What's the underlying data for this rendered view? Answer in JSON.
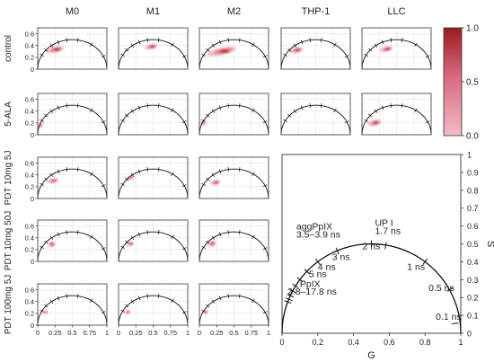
{
  "chart_data": {
    "type": "heatmap",
    "columns": [
      "M0",
      "M1",
      "M2",
      "THP-1",
      "LLC"
    ],
    "rows": [
      "control",
      "5-ALA",
      "PDT 10mg 5J",
      "PDT 10mg 50J",
      "PDT 100mg 5J"
    ],
    "small_axes": {
      "xlim": [
        0,
        1
      ],
      "ylim": [
        0,
        0.7
      ],
      "yticks": [
        "0",
        "0.2",
        "0.4",
        "0.6"
      ],
      "xticks": [
        "0",
        "0.25",
        "0.5",
        "0.75",
        "1"
      ]
    },
    "colorbar": {
      "min": 0,
      "max": 1,
      "ticks": [
        "1.0",
        "0.5",
        "0.0"
      ],
      "color_low": "#f4b9c6",
      "color_high": "#9b1b1f"
    },
    "distributions": [
      {
        "row": "control",
        "column": "M0",
        "g": 0.25,
        "s": 0.33,
        "spread_g": 0.13,
        "spread_s": 0.05,
        "peak": 1.0
      },
      {
        "row": "control",
        "column": "M1",
        "g": 0.47,
        "s": 0.38,
        "spread_g": 0.1,
        "spread_s": 0.04,
        "peak": 1.0
      },
      {
        "row": "control",
        "column": "M2",
        "g": 0.32,
        "s": 0.3,
        "spread_g": 0.22,
        "spread_s": 0.06,
        "peak": 1.0
      },
      {
        "row": "control",
        "column": "THP-1",
        "g": 0.22,
        "s": 0.32,
        "spread_g": 0.1,
        "spread_s": 0.045,
        "peak": 0.9
      },
      {
        "row": "control",
        "column": "LLC",
        "g": 0.35,
        "s": 0.34,
        "spread_g": 0.1,
        "spread_s": 0.04,
        "peak": 1.0
      },
      {
        "row": "5-ALA",
        "column": "M0",
        "g": 0.04,
        "s": 0.16,
        "spread_g": 0.03,
        "spread_s": 0.04,
        "peak": 0.7
      },
      {
        "row": "5-ALA",
        "column": "M2",
        "g": 0.05,
        "s": 0.2,
        "spread_g": 0.04,
        "spread_s": 0.04,
        "peak": 0.6
      },
      {
        "row": "5-ALA",
        "column": "LLC",
        "g": 0.18,
        "s": 0.2,
        "spread_g": 0.1,
        "spread_s": 0.05,
        "peak": 0.9
      },
      {
        "row": "PDT 10mg 5J",
        "column": "M0",
        "g": 0.22,
        "s": 0.3,
        "spread_g": 0.08,
        "spread_s": 0.04,
        "peak": 0.8
      },
      {
        "row": "PDT 10mg 5J",
        "column": "M1",
        "g": 0.17,
        "s": 0.35,
        "spread_g": 0.06,
        "spread_s": 0.03,
        "peak": 0.6
      },
      {
        "row": "PDT 10mg 5J",
        "column": "M2",
        "g": 0.23,
        "s": 0.27,
        "spread_g": 0.07,
        "spread_s": 0.04,
        "peak": 0.9
      },
      {
        "row": "PDT 10mg 50J",
        "column": "M0",
        "g": 0.2,
        "s": 0.29,
        "spread_g": 0.05,
        "spread_s": 0.05,
        "peak": 0.9
      },
      {
        "row": "PDT 10mg 50J",
        "column": "M1",
        "g": 0.17,
        "s": 0.3,
        "spread_g": 0.05,
        "spread_s": 0.04,
        "peak": 0.8
      },
      {
        "row": "PDT 10mg 50J",
        "column": "M2",
        "g": 0.18,
        "s": 0.3,
        "spread_g": 0.06,
        "spread_s": 0.05,
        "peak": 0.8
      },
      {
        "row": "PDT 100mg 5J",
        "column": "M0",
        "g": 0.11,
        "s": 0.22,
        "spread_g": 0.035,
        "spread_s": 0.035,
        "peak": 0.7
      },
      {
        "row": "PDT 100mg 5J",
        "column": "M1",
        "g": 0.13,
        "s": 0.22,
        "spread_g": 0.04,
        "spread_s": 0.04,
        "peak": 0.7
      },
      {
        "row": "PDT 100mg 5J",
        "column": "M2",
        "g": 0.09,
        "s": 0.22,
        "spread_g": 0.03,
        "spread_s": 0.035,
        "peak": 0.6
      }
    ],
    "reference_plot": {
      "xlabel": "G",
      "ylabel": "S",
      "xlim": [
        0,
        1
      ],
      "ylim": [
        0,
        1
      ],
      "xticks": [
        "0",
        "0.2",
        "0.4",
        "0.6",
        "0.8",
        "1"
      ],
      "yticks": [
        "0",
        "0.1",
        "0.2",
        "0.3",
        "0.4",
        "0.5",
        "0.6",
        "0.7",
        "0.8",
        "0.9",
        "1"
      ],
      "lifetime_markers": [
        {
          "label": "0.1 ns",
          "g": 0.968,
          "s": 0.055
        },
        {
          "label": "0.5 ns",
          "g": 0.94,
          "s": 0.245
        },
        {
          "label": "1 ns",
          "g": 0.8,
          "s": 0.4
        },
        {
          "label": "1.7 ns",
          "g": 0.58,
          "s": 0.49
        },
        {
          "label": "2 ns",
          "g": 0.5,
          "s": 0.5
        },
        {
          "label": "3 ns",
          "g": 0.31,
          "s": 0.46
        },
        {
          "label": "4 ns",
          "g": 0.2,
          "s": 0.4
        },
        {
          "label": "5 ns",
          "g": 0.14,
          "s": 0.345
        },
        {
          "label": "",
          "g": 0.1,
          "s": 0.3
        },
        {
          "label": "",
          "g": 0.075,
          "s": 0.265
        },
        {
          "label": "",
          "g": 0.06,
          "s": 0.235
        },
        {
          "label": "",
          "g": 0.047,
          "s": 0.21
        },
        {
          "label": "",
          "g": 0.038,
          "s": 0.19
        },
        {
          "label": "",
          "g": 0.032,
          "s": 0.175
        }
      ],
      "annotations": [
        {
          "text": "aggPpIX",
          "g": 0.08,
          "s": 0.58
        },
        {
          "text": "3.5–3.9 ns",
          "g": 0.08,
          "s": 0.535
        },
        {
          "text": "UP I",
          "g": 0.52,
          "s": 0.6
        },
        {
          "text": "1.7 ns",
          "g": 0.52,
          "s": 0.555
        },
        {
          "text": "2 ns",
          "g": 0.45,
          "s": 0.47
        },
        {
          "text": "3 ns",
          "g": 0.28,
          "s": 0.41
        },
        {
          "text": "4 ns",
          "g": 0.2,
          "s": 0.355
        },
        {
          "text": "5 ns",
          "g": 0.15,
          "s": 0.315
        },
        {
          "text": "1 ns",
          "g": 0.7,
          "s": 0.355
        },
        {
          "text": "0.5 ns",
          "g": 0.82,
          "s": 0.235
        },
        {
          "text": "0.1 ns",
          "g": 0.86,
          "s": 0.075
        },
        {
          "text": "PpIX",
          "g": 0.1,
          "s": 0.26
        },
        {
          "text": "2.8–17.8 ns",
          "g": 0.03,
          "s": 0.215
        }
      ]
    }
  }
}
